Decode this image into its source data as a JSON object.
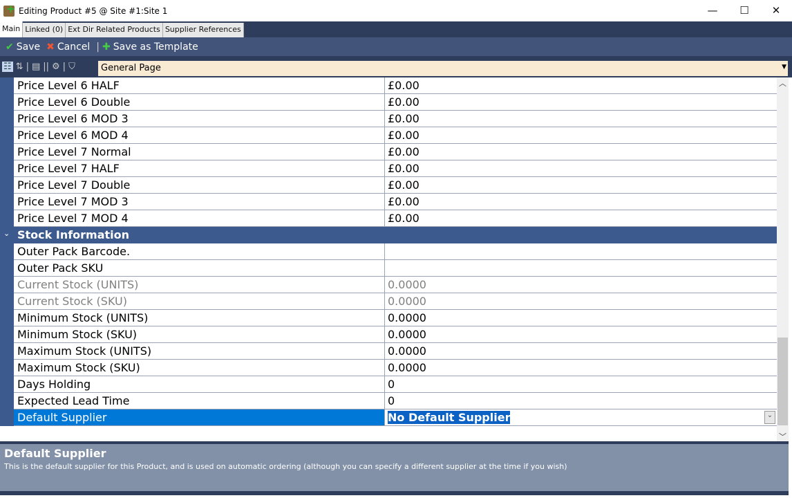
{
  "window": {
    "title": "Editing Product #5 @ Site #1:Site 1",
    "minimize": "—",
    "maximize": "☐",
    "close": "✕"
  },
  "tabs": [
    {
      "label": "Main"
    },
    {
      "label": "Linked (0)"
    },
    {
      "label": "Ext Dir Related Products"
    },
    {
      "label": "Supplier References"
    }
  ],
  "toolbar": {
    "save": "Save",
    "cancel": "Cancel",
    "save_template": "Save as Template"
  },
  "page_selector": {
    "value": "General Page"
  },
  "rows_top": [
    {
      "name": "Price Level 6 HALF",
      "value": "£0.00"
    },
    {
      "name": "Price Level 6 Double",
      "value": "£0.00"
    },
    {
      "name": "Price Level 6 MOD 3",
      "value": "£0.00"
    },
    {
      "name": "Price Level 6 MOD 4",
      "value": "£0.00"
    },
    {
      "name": "Price Level 7 Normal",
      "value": "£0.00"
    },
    {
      "name": "Price Level 7 HALF",
      "value": "£0.00"
    },
    {
      "name": "Price Level 7 Double",
      "value": "£0.00"
    },
    {
      "name": "Price Level 7 MOD 3",
      "value": "£0.00"
    },
    {
      "name": "Price Level 7 MOD 4",
      "value": "£0.00"
    }
  ],
  "category": "Stock Information",
  "rows_stock": [
    {
      "name": "Outer Pack Barcode.",
      "value": ""
    },
    {
      "name": "Outer Pack SKU",
      "value": ""
    },
    {
      "name": "Current Stock (UNITS)",
      "value": "0.0000",
      "disabled": true
    },
    {
      "name": "Current Stock (SKU)",
      "value": "0.0000",
      "disabled": true
    },
    {
      "name": "Minimum Stock (UNITS)",
      "value": "0.0000"
    },
    {
      "name": "Minimum Stock (SKU)",
      "value": "0.0000"
    },
    {
      "name": "Maximum Stock (UNITS)",
      "value": "0.0000"
    },
    {
      "name": "Maximum Stock (SKU)",
      "value": "0.0000"
    },
    {
      "name": "Days Holding",
      "value": "0"
    },
    {
      "name": "Expected Lead Time",
      "value": "0"
    }
  ],
  "selected_row": {
    "name": "Default Supplier",
    "value": "No Default Supplier"
  },
  "description": {
    "title": "Default Supplier",
    "text": "This is the default supplier for this Product, and is used on automatic ordering (although you can specify a different supplier at the time if you wish)"
  }
}
